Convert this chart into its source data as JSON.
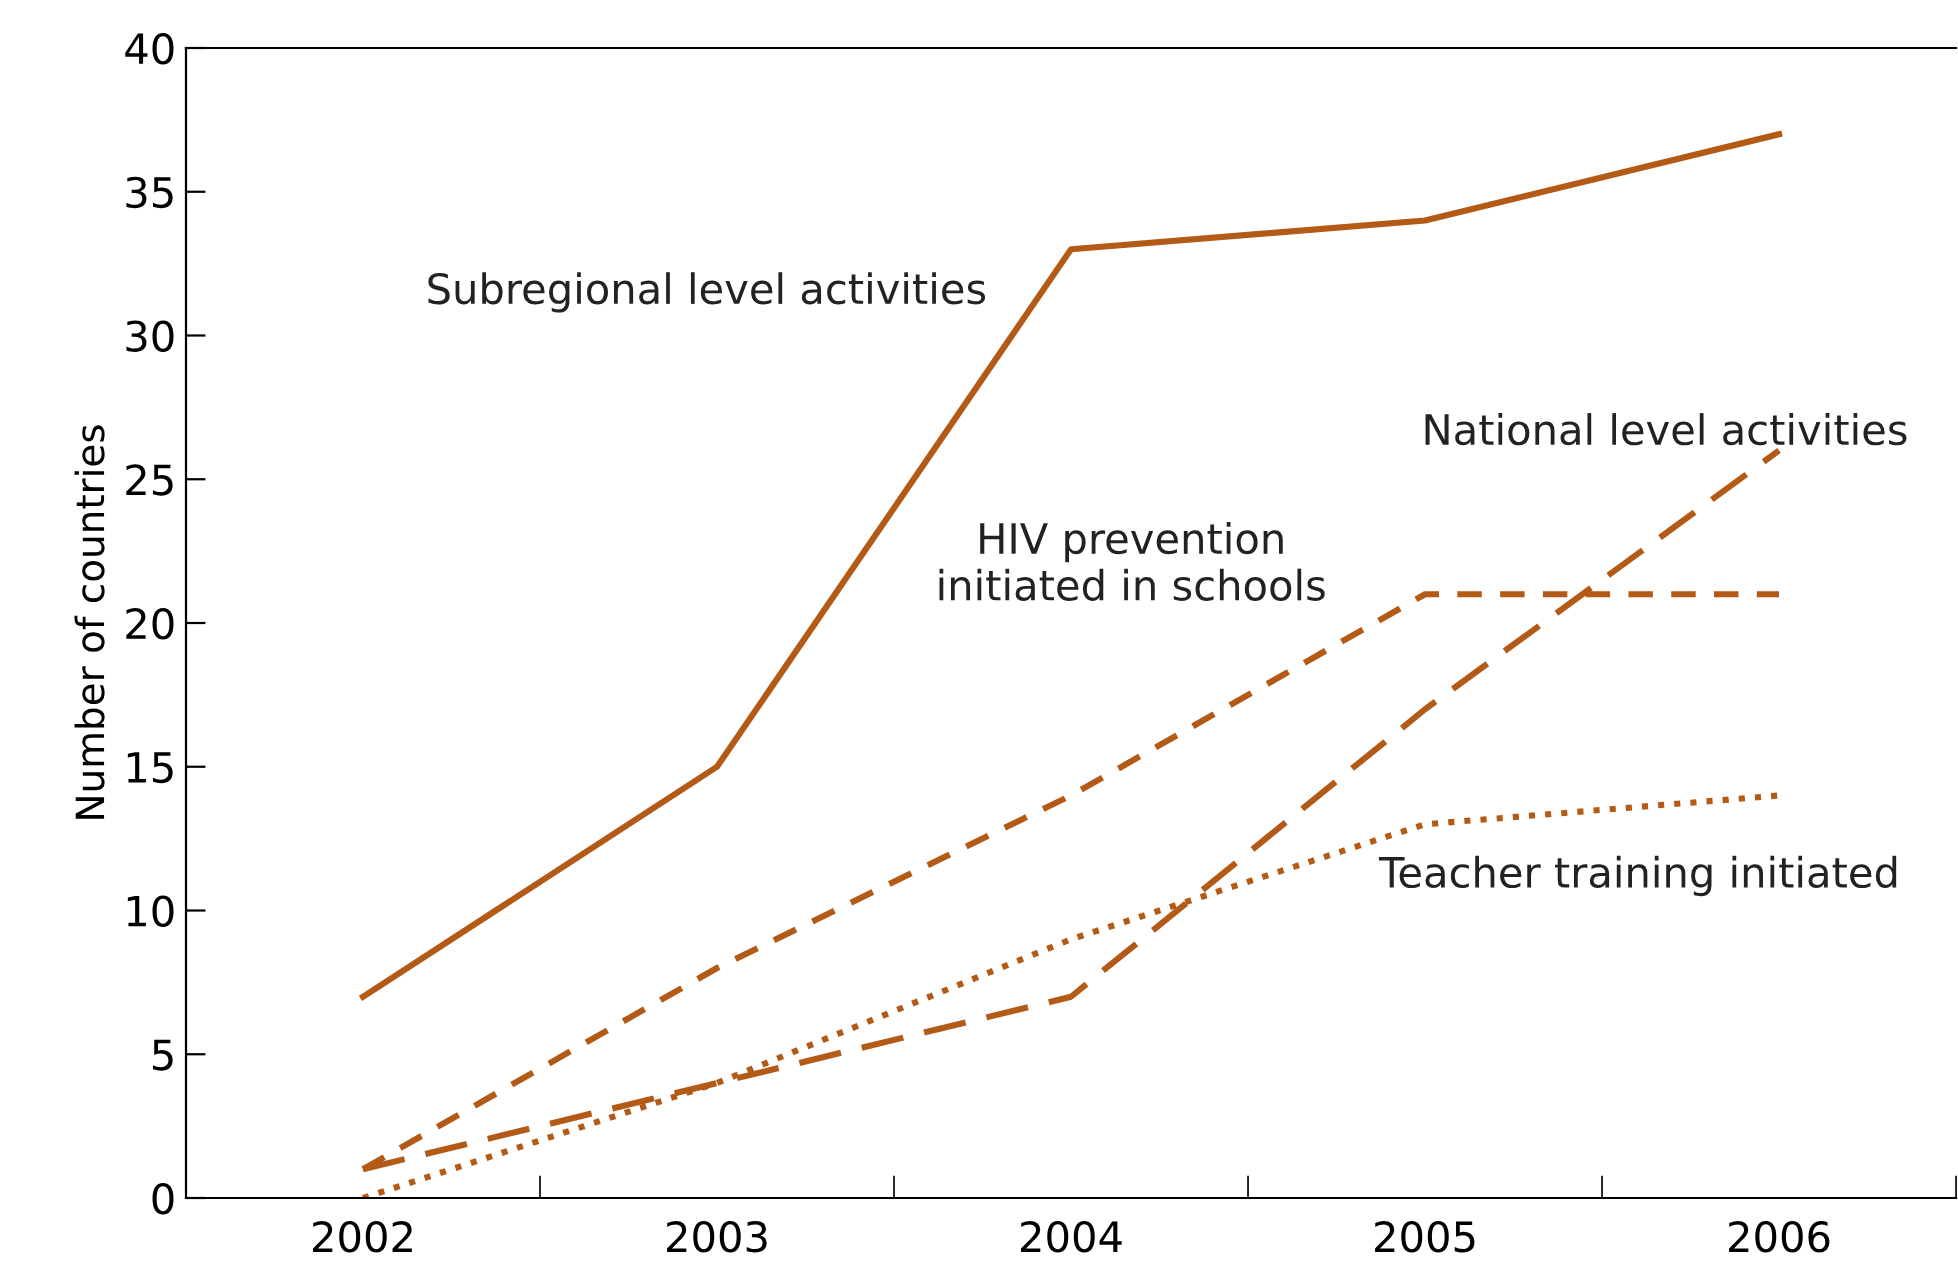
{
  "chart_data": {
    "type": "line",
    "ylabel": "Number of countries",
    "categories": [
      "2002",
      "2003",
      "2004",
      "2005",
      "2006"
    ],
    "series": [
      {
        "name": "Subregional level activities",
        "color": "#b35a16",
        "line_style": "solid",
        "values": [
          7,
          15,
          33,
          34,
          37
        ]
      },
      {
        "name": "National level activities",
        "color": "#b35a16",
        "line_style": "dashed",
        "values": [
          1,
          4,
          7,
          17,
          26
        ]
      },
      {
        "name": "HIV prevention\ninitiated in schools",
        "color": "#b35a16",
        "line_style": "dashed",
        "values": [
          1,
          8,
          14,
          21,
          21
        ]
      },
      {
        "name": "Teacher training initiated",
        "color": "#b35a16",
        "line_style": "dotted",
        "values": [
          0,
          4,
          9,
          13,
          14
        ]
      }
    ],
    "ylim": [
      0,
      40
    ],
    "yticks": [
      0,
      5,
      10,
      15,
      20,
      25,
      30,
      35,
      40
    ],
    "grid": false,
    "legend": false,
    "marker": "none"
  }
}
